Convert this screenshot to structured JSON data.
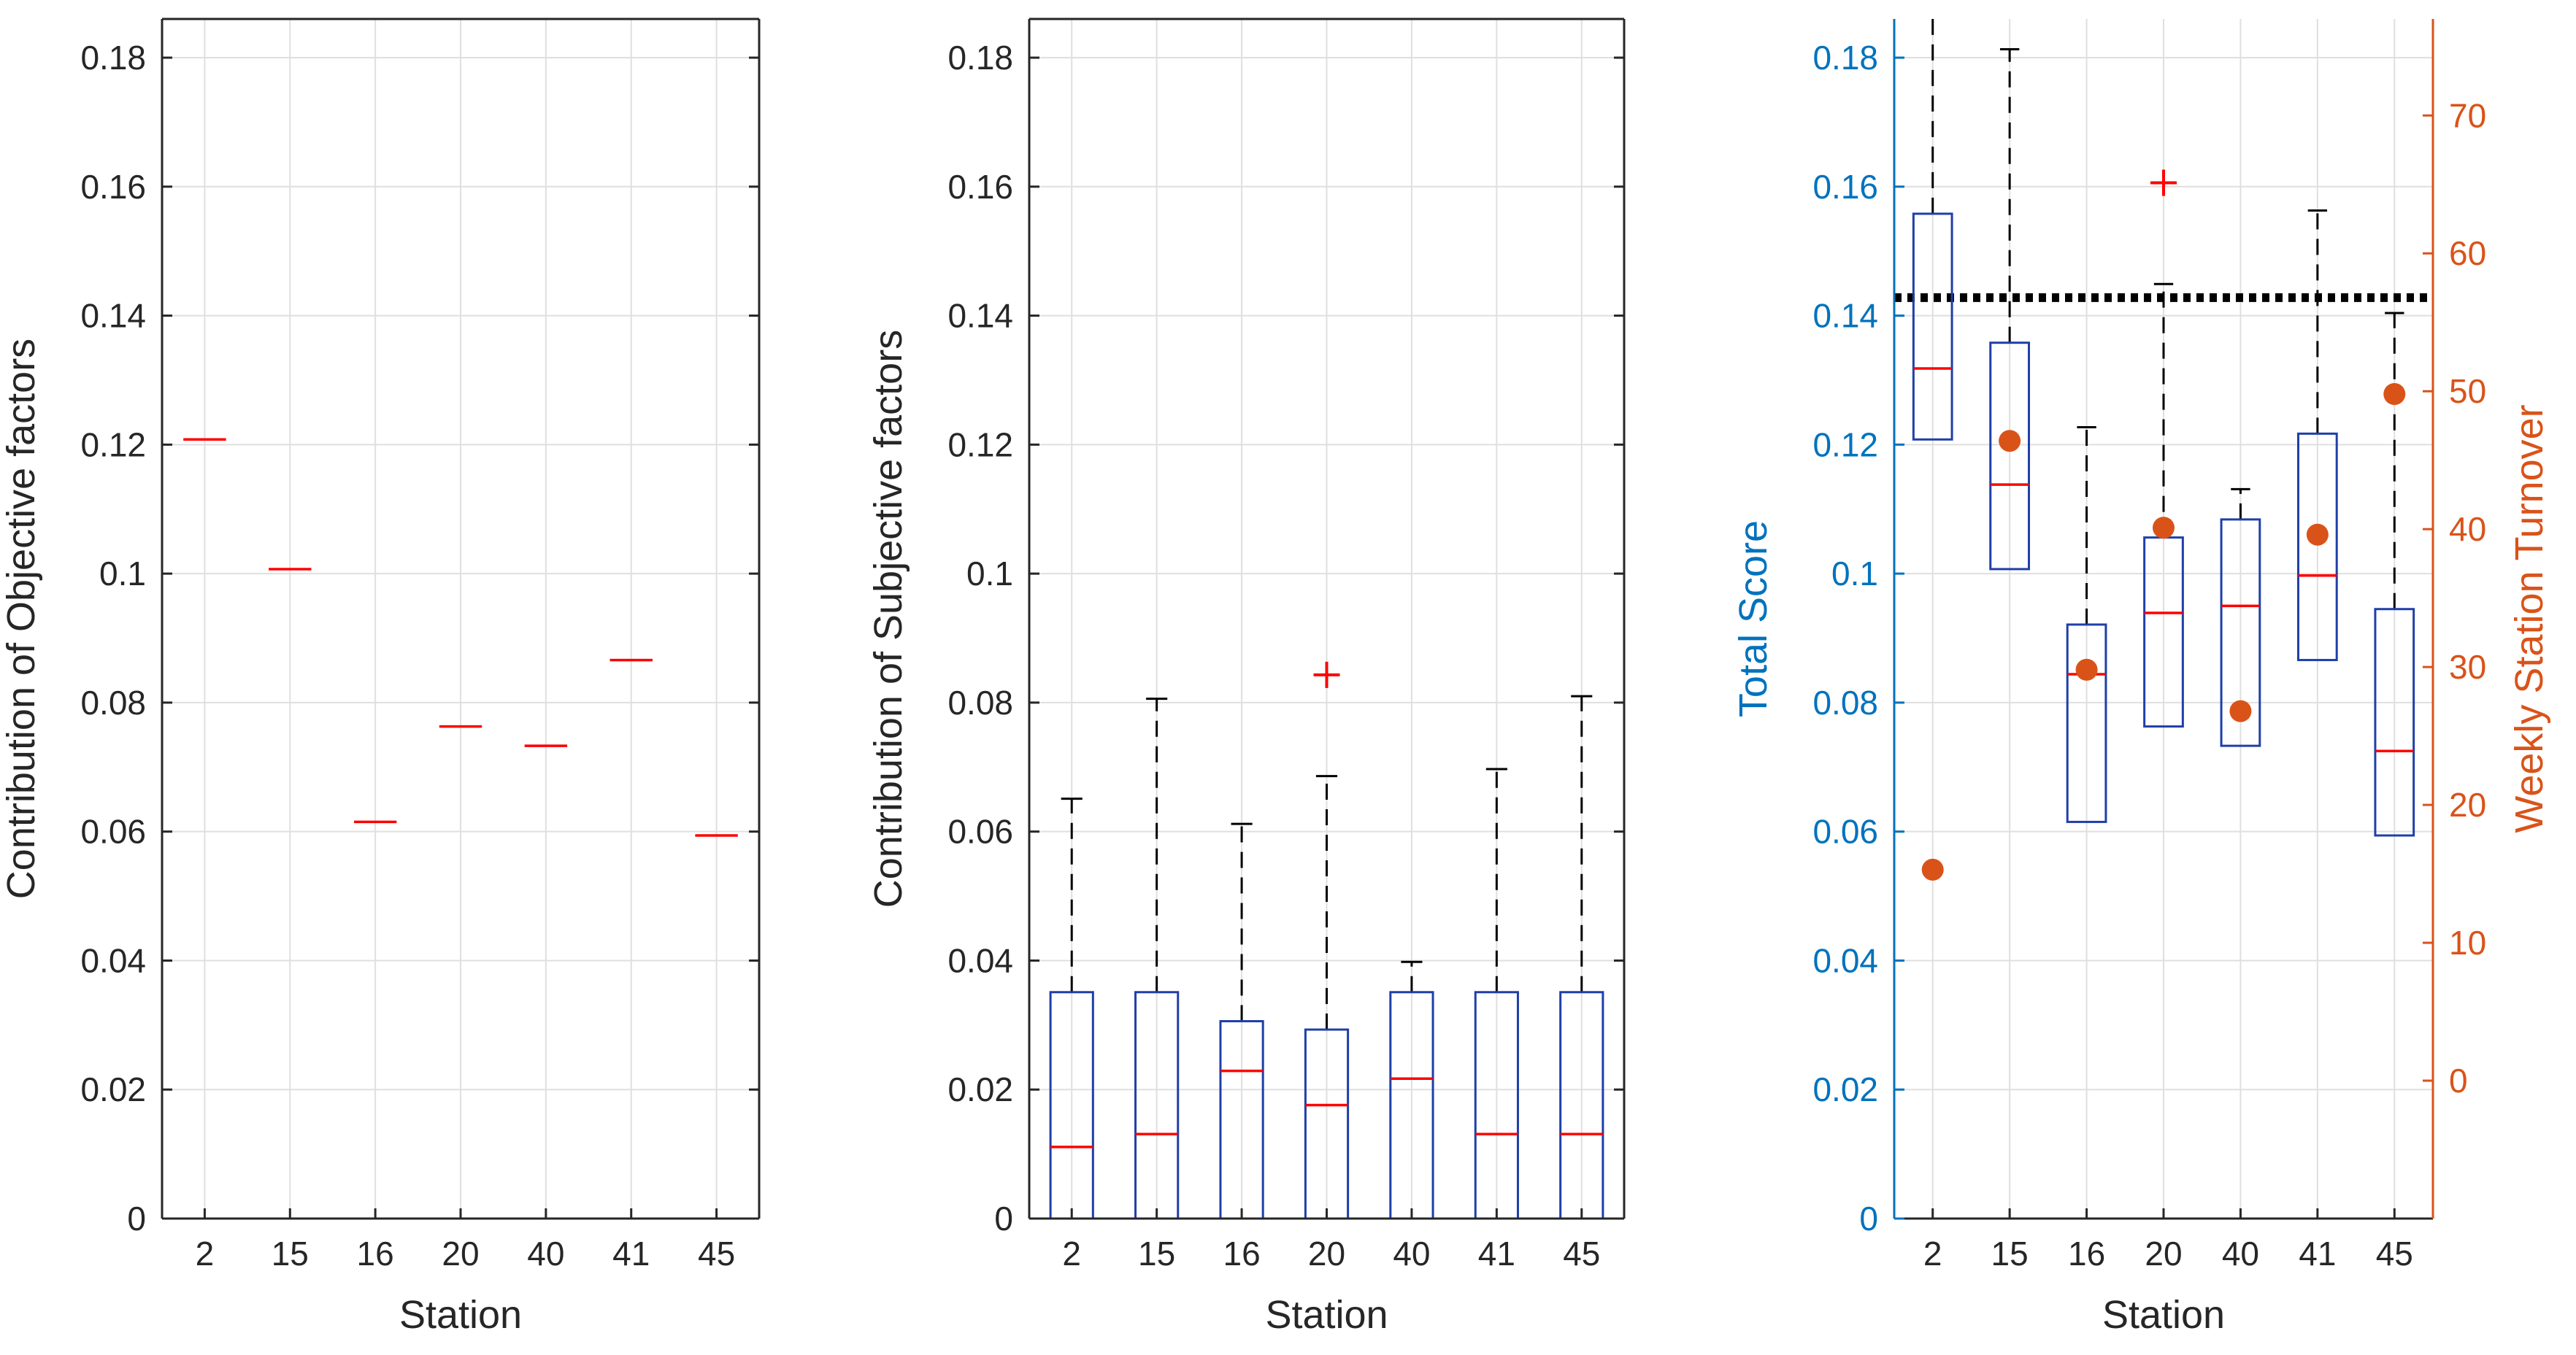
{
  "chart_data": [
    {
      "type": "boxplot",
      "xlabel": "Station",
      "ylabel": "Contribution of Objective factors",
      "categories": [
        "2",
        "15",
        "16",
        "20",
        "40",
        "41",
        "45"
      ],
      "ylim": [
        0,
        0.186
      ],
      "yticks": [
        0,
        0.02,
        0.04,
        0.06,
        0.08,
        0.1,
        0.12,
        0.14,
        0.16,
        0.18
      ],
      "ytick_labels": [
        "0",
        "0.02",
        "0.04",
        "0.06",
        "0.08",
        "0.1",
        "0.12",
        "0.14",
        "0.16",
        "0.18"
      ],
      "grid": true,
      "boxes": [
        {
          "q1": 0.1208,
          "median": 0.1208,
          "q3": 0.1208,
          "whisker_low": 0.1208,
          "whisker_high": 0.1208,
          "outliers": []
        },
        {
          "q1": 0.1007,
          "median": 0.1007,
          "q3": 0.1007,
          "whisker_low": 0.1007,
          "whisker_high": 0.1007,
          "outliers": []
        },
        {
          "q1": 0.0615,
          "median": 0.0615,
          "q3": 0.0615,
          "whisker_low": 0.0615,
          "whisker_high": 0.0615,
          "outliers": []
        },
        {
          "q1": 0.0763,
          "median": 0.0763,
          "q3": 0.0763,
          "whisker_low": 0.0763,
          "whisker_high": 0.0763,
          "outliers": []
        },
        {
          "q1": 0.0733,
          "median": 0.0733,
          "q3": 0.0733,
          "whisker_low": 0.0733,
          "whisker_high": 0.0733,
          "outliers": []
        },
        {
          "q1": 0.0866,
          "median": 0.0866,
          "q3": 0.0866,
          "whisker_low": 0.0866,
          "whisker_high": 0.0866,
          "outliers": []
        },
        {
          "q1": 0.0594,
          "median": 0.0594,
          "q3": 0.0594,
          "whisker_low": 0.0594,
          "whisker_high": 0.0594,
          "outliers": []
        }
      ]
    },
    {
      "type": "boxplot",
      "xlabel": "Station",
      "ylabel": "Contribution of Subjective factors",
      "categories": [
        "2",
        "15",
        "16",
        "20",
        "40",
        "41",
        "45"
      ],
      "ylim": [
        0,
        0.186
      ],
      "yticks": [
        0,
        0.02,
        0.04,
        0.06,
        0.08,
        0.1,
        0.12,
        0.14,
        0.16,
        0.18
      ],
      "ytick_labels": [
        "0",
        "0.02",
        "0.04",
        "0.06",
        "0.08",
        "0.1",
        "0.12",
        "0.14",
        "0.16",
        "0.18"
      ],
      "grid": true,
      "boxes": [
        {
          "q1": 0,
          "median": 0.0111,
          "q3": 0.0351,
          "whisker_low": 0,
          "whisker_high": 0.0651,
          "outliers": []
        },
        {
          "q1": 0,
          "median": 0.0131,
          "q3": 0.0351,
          "whisker_low": 0,
          "whisker_high": 0.0806,
          "outliers": []
        },
        {
          "q1": 0,
          "median": 0.0229,
          "q3": 0.0306,
          "whisker_low": 0,
          "whisker_high": 0.0612,
          "outliers": []
        },
        {
          "q1": 0,
          "median": 0.0176,
          "q3": 0.0293,
          "whisker_low": 0,
          "whisker_high": 0.0686,
          "outliers": [
            0.0843
          ]
        },
        {
          "q1": 0,
          "median": 0.0217,
          "q3": 0.0351,
          "whisker_low": 0,
          "whisker_high": 0.0398,
          "outliers": []
        },
        {
          "q1": 0,
          "median": 0.0131,
          "q3": 0.0351,
          "whisker_low": 0,
          "whisker_high": 0.0697,
          "outliers": []
        },
        {
          "q1": 0,
          "median": 0.0131,
          "q3": 0.0351,
          "whisker_low": 0,
          "whisker_high": 0.081,
          "outliers": []
        }
      ]
    },
    {
      "type": "boxplot+scatter",
      "xlabel": "Station",
      "ylabel": "Total Score",
      "ylabel_right": "Weekly Station Turnover",
      "categories": [
        "2",
        "15",
        "16",
        "20",
        "40",
        "41",
        "45"
      ],
      "ylim": [
        0,
        0.186
      ],
      "yticks": [
        0,
        0.02,
        0.04,
        0.06,
        0.08,
        0.1,
        0.12,
        0.14,
        0.16,
        0.18
      ],
      "ytick_labels": [
        "0",
        "0.02",
        "0.04",
        "0.06",
        "0.08",
        "0.1",
        "0.12",
        "0.14",
        "0.16",
        "0.18"
      ],
      "ylim_right": [
        -10,
        77
      ],
      "yticks_right": [
        0,
        10,
        20,
        30,
        40,
        50,
        60,
        70
      ],
      "ytick_labels_right": [
        "0",
        "10",
        "20",
        "30",
        "40",
        "50",
        "60",
        "70"
      ],
      "grid": true,
      "left_axis_color": "#0072BD",
      "right_axis_color": "#D95319",
      "reference_line": {
        "value": 0.1428,
        "style": "dotted",
        "color": "#000000"
      },
      "boxes": [
        {
          "q1": 0.1208,
          "median": 0.1318,
          "q3": 0.1558,
          "whisker_low": 0.1208,
          "whisker_high": 0.186,
          "outliers": []
        },
        {
          "q1": 0.1007,
          "median": 0.1138,
          "q3": 0.1358,
          "whisker_low": 0.1007,
          "whisker_high": 0.1813,
          "outliers": []
        },
        {
          "q1": 0.0615,
          "median": 0.0844,
          "q3": 0.0921,
          "whisker_low": 0.0615,
          "whisker_high": 0.1227,
          "outliers": []
        },
        {
          "q1": 0.0763,
          "median": 0.0939,
          "q3": 0.1056,
          "whisker_low": 0.0763,
          "whisker_high": 0.1449,
          "outliers": [
            0.1606
          ]
        },
        {
          "q1": 0.0733,
          "median": 0.095,
          "q3": 0.1084,
          "whisker_low": 0.0733,
          "whisker_high": 0.1131,
          "outliers": []
        },
        {
          "q1": 0.0866,
          "median": 0.0997,
          "q3": 0.1217,
          "whisker_low": 0.0866,
          "whisker_high": 0.1563,
          "outliers": []
        },
        {
          "q1": 0.0594,
          "median": 0.0725,
          "q3": 0.0945,
          "whisker_low": 0.0594,
          "whisker_high": 0.1404,
          "outliers": []
        }
      ],
      "turnover": [
        15.3,
        46.4,
        29.8,
        40.1,
        26.8,
        39.6,
        49.8
      ]
    }
  ]
}
